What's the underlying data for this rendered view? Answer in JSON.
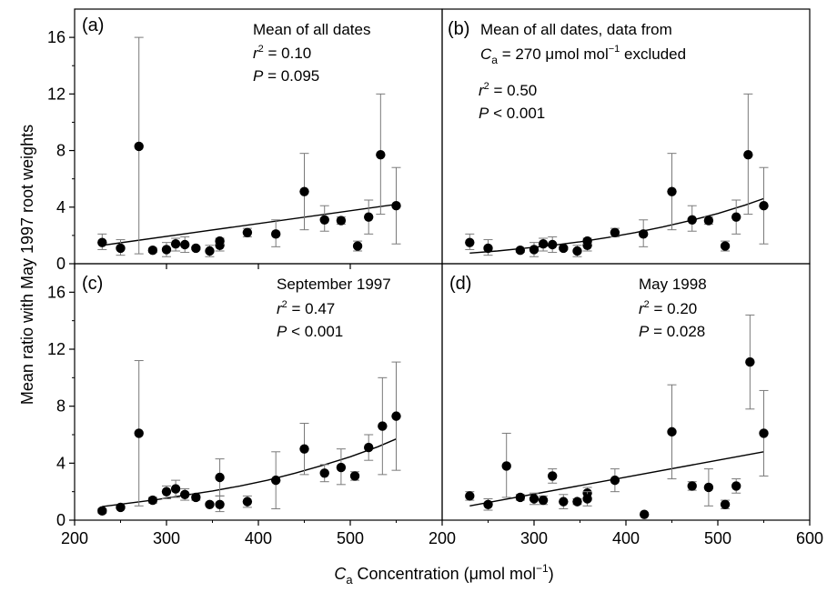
{
  "figure": {
    "ylabel": "Mean ratio with May 1997 root weights",
    "xlabel_main": "C",
    "xlabel_sub": "a",
    "xlabel_rest": " Concentration (μmol mol",
    "xlabel_sup": "−1",
    "xlabel_end": ")"
  },
  "chart_data": [
    {
      "type": "scatter",
      "panel": "(a)",
      "xlim": [
        200,
        600
      ],
      "ylim": [
        0,
        18
      ],
      "xticks": [
        200,
        300,
        400,
        500
      ],
      "yticks": [
        0,
        4,
        8,
        12,
        16
      ],
      "annotations": {
        "line1": "Mean of all dates",
        "r2_prefix": "r",
        "r2_sup": "2",
        "r2_value": " = 0.10",
        "p_prefix": "P",
        "p_value": " = 0.095"
      },
      "points": [
        {
          "x": 230,
          "y": 1.5,
          "low": 1.0,
          "high": 2.1
        },
        {
          "x": 250,
          "y": 1.1,
          "low": 0.6,
          "high": 1.7
        },
        {
          "x": 270,
          "y": 8.3,
          "low": 0.7,
          "high": 16.0
        },
        {
          "x": 285,
          "y": 0.95,
          "low": 0.8,
          "high": 1.1
        },
        {
          "x": 300,
          "y": 1.0,
          "low": 0.5,
          "high": 1.5
        },
        {
          "x": 310,
          "y": 1.4,
          "low": 0.9,
          "high": 1.8
        },
        {
          "x": 320,
          "y": 1.35,
          "low": 0.8,
          "high": 1.9
        },
        {
          "x": 332,
          "y": 1.1,
          "low": 1.0,
          "high": 1.2
        },
        {
          "x": 347,
          "y": 0.9,
          "low": 0.5,
          "high": 1.3
        },
        {
          "x": 358,
          "y": 1.3,
          "low": 0.9,
          "high": 1.6
        },
        {
          "x": 358,
          "y": 1.6,
          "low": 1.4,
          "high": 1.8
        },
        {
          "x": 388,
          "y": 2.2,
          "low": 1.9,
          "high": 2.5
        },
        {
          "x": 419,
          "y": 2.1,
          "low": 1.2,
          "high": 3.1
        },
        {
          "x": 450,
          "y": 5.1,
          "low": 2.4,
          "high": 7.8
        },
        {
          "x": 472,
          "y": 3.1,
          "low": 2.3,
          "high": 4.1
        },
        {
          "x": 490,
          "y": 3.05,
          "low": 2.8,
          "high": 3.3
        },
        {
          "x": 508,
          "y": 1.25,
          "low": 0.9,
          "high": 1.6
        },
        {
          "x": 520,
          "y": 3.3,
          "low": 2.1,
          "high": 4.5
        },
        {
          "x": 533,
          "y": 7.7,
          "low": 3.5,
          "high": 12.0
        },
        {
          "x": 550,
          "y": 4.1,
          "low": 1.4,
          "high": 6.8
        }
      ],
      "fit": {
        "x": [
          230,
          550
        ],
        "y": [
          1.3,
          4.2
        ]
      }
    },
    {
      "type": "scatter",
      "panel": "(b)",
      "xlim": [
        200,
        600
      ],
      "ylim": [
        0,
        18
      ],
      "xticks": [],
      "yticks": [],
      "annotations": {
        "line1": "Mean of all dates, data from",
        "line2_prefix": "C",
        "line2_sub": "a",
        "line2_rest": " = 270 μmol mol",
        "line2_sup": "−1",
        "line2_end": " excluded",
        "r2_prefix": "r",
        "r2_sup": "2",
        "r2_value": " = 0.50",
        "p_prefix": "P",
        "p_value": " < 0.001"
      },
      "points": [
        {
          "x": 230,
          "y": 1.5,
          "low": 1.0,
          "high": 2.1
        },
        {
          "x": 250,
          "y": 1.1,
          "low": 0.6,
          "high": 1.7
        },
        {
          "x": 285,
          "y": 0.95,
          "low": 0.8,
          "high": 1.1
        },
        {
          "x": 300,
          "y": 1.0,
          "low": 0.5,
          "high": 1.5
        },
        {
          "x": 310,
          "y": 1.4,
          "low": 0.9,
          "high": 1.8
        },
        {
          "x": 320,
          "y": 1.35,
          "low": 0.8,
          "high": 1.9
        },
        {
          "x": 332,
          "y": 1.1,
          "low": 1.0,
          "high": 1.2
        },
        {
          "x": 347,
          "y": 0.9,
          "low": 0.5,
          "high": 1.3
        },
        {
          "x": 358,
          "y": 1.3,
          "low": 0.9,
          "high": 1.6
        },
        {
          "x": 358,
          "y": 1.6,
          "low": 1.4,
          "high": 1.8
        },
        {
          "x": 388,
          "y": 2.2,
          "low": 1.9,
          "high": 2.5
        },
        {
          "x": 419,
          "y": 2.1,
          "low": 1.2,
          "high": 3.1
        },
        {
          "x": 450,
          "y": 5.1,
          "low": 2.4,
          "high": 7.8
        },
        {
          "x": 472,
          "y": 3.1,
          "low": 2.3,
          "high": 4.1
        },
        {
          "x": 490,
          "y": 3.05,
          "low": 2.8,
          "high": 3.3
        },
        {
          "x": 508,
          "y": 1.25,
          "low": 0.9,
          "high": 1.6
        },
        {
          "x": 520,
          "y": 3.3,
          "low": 2.1,
          "high": 4.5
        },
        {
          "x": 533,
          "y": 7.7,
          "low": 3.5,
          "high": 12.0
        },
        {
          "x": 550,
          "y": 4.1,
          "low": 1.4,
          "high": 6.8
        }
      ],
      "fit_curve": {
        "x": [
          230,
          260,
          290,
          320,
          350,
          380,
          410,
          440,
          470,
          500,
          530,
          550
        ],
        "y": [
          0.75,
          0.9,
          1.1,
          1.3,
          1.55,
          1.85,
          2.2,
          2.6,
          3.05,
          3.55,
          4.15,
          4.6
        ]
      }
    },
    {
      "type": "scatter",
      "panel": "(c)",
      "xlim": [
        200,
        600
      ],
      "ylim": [
        0,
        18
      ],
      "xticks": [
        200,
        300,
        400,
        500
      ],
      "yticks": [
        0,
        4,
        8,
        12,
        16
      ],
      "annotations": {
        "line1": "September 1997",
        "r2_prefix": "r",
        "r2_sup": "2",
        "r2_value": " = 0.47",
        "p_prefix": "P",
        "p_value": " < 0.001"
      },
      "points": [
        {
          "x": 230,
          "y": 0.65,
          "low": 0.5,
          "high": 0.8
        },
        {
          "x": 250,
          "y": 0.9,
          "low": 0.8,
          "high": 1.0
        },
        {
          "x": 270,
          "y": 6.1,
          "low": 1.0,
          "high": 11.2
        },
        {
          "x": 285,
          "y": 1.4,
          "low": 1.2,
          "high": 1.6
        },
        {
          "x": 300,
          "y": 2.0,
          "low": 1.5,
          "high": 2.4
        },
        {
          "x": 310,
          "y": 2.2,
          "low": 1.6,
          "high": 2.8
        },
        {
          "x": 320,
          "y": 1.8,
          "low": 1.4,
          "high": 2.2
        },
        {
          "x": 332,
          "y": 1.6,
          "low": 1.4,
          "high": 1.8
        },
        {
          "x": 347,
          "y": 1.1,
          "low": 1.0,
          "high": 1.2
        },
        {
          "x": 358,
          "y": 3.0,
          "low": 1.7,
          "high": 4.3
        },
        {
          "x": 358,
          "y": 1.1,
          "low": 0.6,
          "high": 1.7
        },
        {
          "x": 388,
          "y": 1.3,
          "low": 0.9,
          "high": 1.7
        },
        {
          "x": 419,
          "y": 2.8,
          "low": 0.8,
          "high": 4.8
        },
        {
          "x": 450,
          "y": 5.0,
          "low": 3.2,
          "high": 6.8
        },
        {
          "x": 472,
          "y": 3.3,
          "low": 2.7,
          "high": 3.9
        },
        {
          "x": 490,
          "y": 3.7,
          "low": 2.5,
          "high": 5.0
        },
        {
          "x": 505,
          "y": 3.1,
          "low": 2.8,
          "high": 3.4
        },
        {
          "x": 520,
          "y": 5.1,
          "low": 4.2,
          "high": 6.0
        },
        {
          "x": 535,
          "y": 6.6,
          "low": 3.2,
          "high": 10.0
        },
        {
          "x": 550,
          "y": 7.3,
          "low": 3.5,
          "high": 11.1
        }
      ],
      "fit_curve": {
        "x": [
          230,
          260,
          290,
          320,
          350,
          380,
          410,
          440,
          470,
          500,
          530,
          550
        ],
        "y": [
          0.95,
          1.2,
          1.45,
          1.75,
          2.05,
          2.4,
          2.8,
          3.3,
          3.85,
          4.45,
          5.15,
          5.7
        ]
      }
    },
    {
      "type": "scatter",
      "panel": "(d)",
      "xlim": [
        200,
        600
      ],
      "ylim": [
        0,
        18
      ],
      "xticks": [
        200,
        300,
        400,
        500,
        600
      ],
      "yticks": [],
      "annotations": {
        "line1": "May 1998",
        "r2_prefix": "r",
        "r2_sup": "2",
        "r2_value": " = 0.20",
        "p_prefix": "P",
        "p_value": " = 0.028"
      },
      "points": [
        {
          "x": 230,
          "y": 1.7,
          "low": 1.4,
          "high": 2.0
        },
        {
          "x": 250,
          "y": 1.1,
          "low": 0.7,
          "high": 1.5
        },
        {
          "x": 270,
          "y": 3.8,
          "low": 1.6,
          "high": 6.1
        },
        {
          "x": 285,
          "y": 1.6,
          "low": 1.4,
          "high": 1.8
        },
        {
          "x": 300,
          "y": 1.5,
          "low": 1.1,
          "high": 1.9
        },
        {
          "x": 310,
          "y": 1.4,
          "low": 1.1,
          "high": 1.7
        },
        {
          "x": 320,
          "y": 3.1,
          "low": 2.6,
          "high": 3.6
        },
        {
          "x": 332,
          "y": 1.3,
          "low": 0.8,
          "high": 1.8
        },
        {
          "x": 347,
          "y": 1.3,
          "low": 1.1,
          "high": 1.5
        },
        {
          "x": 358,
          "y": 1.9,
          "low": 1.6,
          "high": 2.3
        },
        {
          "x": 358,
          "y": 1.5,
          "low": 1.0,
          "high": 2.0
        },
        {
          "x": 388,
          "y": 2.8,
          "low": 2.0,
          "high": 3.6
        },
        {
          "x": 420,
          "y": 0.4,
          "low": 0.4,
          "high": 0.4
        },
        {
          "x": 450,
          "y": 6.2,
          "low": 2.9,
          "high": 9.5
        },
        {
          "x": 472,
          "y": 2.4,
          "low": 2.1,
          "high": 2.7
        },
        {
          "x": 490,
          "y": 2.3,
          "low": 1.0,
          "high": 3.6
        },
        {
          "x": 508,
          "y": 1.1,
          "low": 0.8,
          "high": 1.4
        },
        {
          "x": 520,
          "y": 2.4,
          "low": 1.9,
          "high": 2.9
        },
        {
          "x": 535,
          "y": 11.1,
          "low": 7.8,
          "high": 14.4
        },
        {
          "x": 550,
          "y": 6.1,
          "low": 3.1,
          "high": 9.1
        }
      ],
      "fit": {
        "x": [
          230,
          550
        ],
        "y": [
          1.0,
          4.8
        ]
      }
    }
  ]
}
